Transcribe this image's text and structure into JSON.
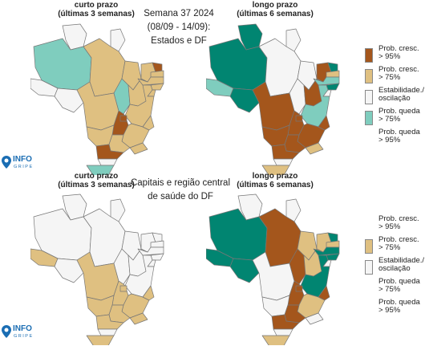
{
  "colors": {
    "brown": "#a4561c",
    "tan": "#dfc081",
    "white": "#f5f5f5",
    "mint": "#7fcdbe",
    "teal": "#018571",
    "border": "#777777"
  },
  "top": {
    "left_title_1": "curto prazo",
    "left_title_2": "(últimas 3 semanas)",
    "center_1": "Semana 37 2024",
    "center_2": "(08/09 - 14/09):",
    "center_3": "Estados e DF",
    "right_title_1": "longo prazo",
    "right_title_2": "(últimas 6 semanas)"
  },
  "bottom": {
    "left_title_1": "curto prazo",
    "left_title_2": "(últimas 3 semanas)",
    "center_1": "Capitais e região central",
    "center_2": "de saúde do DF",
    "right_title_1": "longo prazo",
    "right_title_2": "(últimas 6 semanas)"
  },
  "legend_top": [
    {
      "line1": "Prob. cresc.",
      "line2": "> 95%",
      "color": "brown"
    },
    {
      "line1": "Prob. cresc.",
      "line2": "> 75%",
      "color": "tan"
    },
    {
      "line1": "Estabilidade./",
      "line2": "oscilação",
      "color": "white"
    },
    {
      "line1": "Prob. queda",
      "line2": "> 75%",
      "color": "mint"
    },
    {
      "line1": "Prob. queda",
      "line2": "> 95%",
      "color": "none"
    }
  ],
  "legend_bottom": [
    {
      "line1": "Prob. cresc.",
      "line2": "> 95%",
      "color": "none"
    },
    {
      "line1": "Prob. cresc.",
      "line2": "> 75%",
      "color": "tan"
    },
    {
      "line1": "Estabilidade./",
      "line2": "oscilação",
      "color": "white"
    },
    {
      "line1": "Prob. queda",
      "line2": "> 75%",
      "color": "none"
    },
    {
      "line1": "Prob. queda",
      "line2": "> 95%",
      "color": "none"
    }
  ],
  "logo": {
    "text": "INFO",
    "sub": "GRIPE"
  },
  "maps": {
    "top_short": {
      "RR": "white",
      "AP": "white",
      "AM": "mint",
      "PA": "tan",
      "AC": "white",
      "RO": "white",
      "MT": "tan",
      "TO": "mint",
      "MA": "tan",
      "PI": "tan",
      "CE": "tan",
      "RN": "brown",
      "PB": "tan",
      "PE": "tan",
      "AL": "tan",
      "SE": "tan",
      "BA": "tan",
      "GO": "brown",
      "DF": "brown",
      "MS": "tan",
      "MG": "tan",
      "ES": "tan",
      "RJ": "tan",
      "SP": "tan",
      "PR": "brown",
      "SC": "white",
      "RS": "mint"
    },
    "top_long": {
      "RR": "teal",
      "AP": "white",
      "AM": "teal",
      "PA": "white",
      "AC": "mint",
      "RO": "teal",
      "MT": "brown",
      "TO": "white",
      "MA": "white",
      "PI": "brown",
      "CE": "brown",
      "RN": "teal",
      "PB": "tan",
      "PE": "mint",
      "AL": "teal",
      "SE": "white",
      "BA": "mint",
      "GO": "brown",
      "DF": "brown",
      "MS": "brown",
      "MG": "brown",
      "ES": "brown",
      "RJ": "tan",
      "SP": "brown",
      "PR": "brown",
      "SC": "white",
      "RS": "tan"
    },
    "bottom_short": {
      "RR": "white",
      "AP": "white",
      "AM": "white",
      "PA": "white",
      "AC": "tan",
      "RO": "white",
      "MT": "tan",
      "TO": "white",
      "MA": "white",
      "PI": "white",
      "CE": "white",
      "RN": "white",
      "PB": "white",
      "PE": "white",
      "AL": "white",
      "SE": "white",
      "BA": "white",
      "GO": "tan",
      "DF": "tan",
      "MS": "tan",
      "MG": "tan",
      "ES": "tan",
      "RJ": "tan",
      "SP": "tan",
      "PR": "tan",
      "SC": "white",
      "RS": "tan"
    },
    "bottom_long": {
      "RR": "white",
      "AP": "white",
      "AM": "teal",
      "PA": "brown",
      "AC": "teal",
      "RO": "teal",
      "MT": "white",
      "TO": "brown",
      "MA": "tan",
      "PI": "tan",
      "CE": "tan",
      "RN": "teal",
      "PB": "tan",
      "PE": "teal",
      "AL": "teal",
      "SE": "white",
      "BA": "teal",
      "GO": "brown",
      "DF": "brown",
      "MS": "white",
      "MG": "tan",
      "ES": "brown",
      "RJ": "white",
      "SP": "brown",
      "PR": "brown",
      "SC": "white",
      "RS": "tan"
    }
  }
}
